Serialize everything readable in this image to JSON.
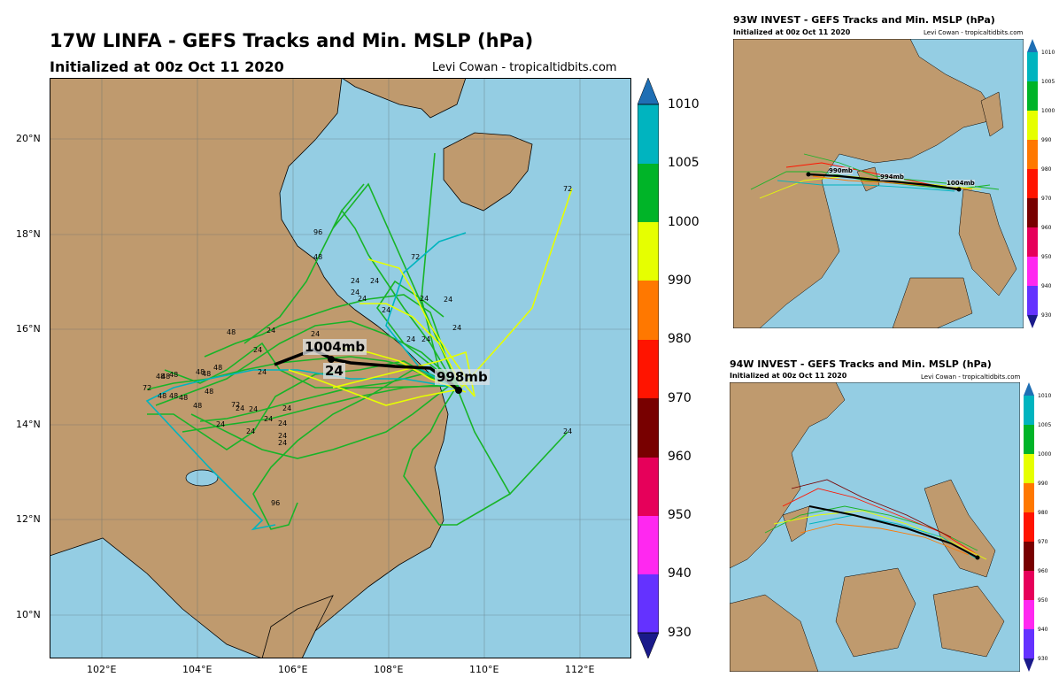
{
  "main": {
    "title": "17W LINFA - GEFS Tracks and Min. MSLP (hPa)",
    "subtitle": "Initialized at 00z Oct 11 2020",
    "credit": "Levi Cowan - tropicaltidbits.com",
    "lat_labels": [
      "20°N",
      "18°N",
      "16°N",
      "14°N",
      "12°N",
      "10°N"
    ],
    "lon_labels": [
      "102°E",
      "104°E",
      "106°E",
      "108°E",
      "110°E",
      "112°E"
    ],
    "pressure_labels": [
      {
        "text": "1004mb"
      },
      {
        "text": "998mb"
      }
    ],
    "hour_label": "24",
    "colorbar_labels": [
      "1010",
      "1005",
      "1000",
      "990",
      "980",
      "970",
      "960",
      "950",
      "940",
      "930"
    ],
    "colorbar_colors": [
      "#00b4bf",
      "#00b428",
      "#e6ff00",
      "#ff7800",
      "#ff1400",
      "#780000",
      "#e6005a",
      "#ff28f0",
      "#ff50ff",
      "#6432ff"
    ]
  },
  "panel_93w": {
    "title": "93W INVEST - GEFS Tracks and Min. MSLP (hPa)",
    "subtitle": "Initialized at 00z Oct 11 2020",
    "credit": "Levi Cowan - tropicaltidbits.com",
    "pressure_labels": [
      "990mb",
      "994mb",
      "1004mb"
    ],
    "colorbar_labels": [
      "1010",
      "1005",
      "1000",
      "990",
      "980",
      "970",
      "960",
      "950",
      "940",
      "930"
    ]
  },
  "panel_94w": {
    "title": "94W INVEST - GEFS Tracks and Min. MSLP (hPa)",
    "subtitle": "Initialized at 00z Oct 11 2020",
    "credit": "Levi Cowan - tropicaltidbits.com",
    "colorbar_labels": [
      "1010",
      "1005",
      "1000",
      "990",
      "980",
      "970",
      "960",
      "950",
      "940",
      "930"
    ]
  },
  "colors": {
    "ocean": "#94cde3",
    "land": "#bf9a6e",
    "track_green": "#18b428",
    "track_yellow": "#e6ff00",
    "track_teal": "#00b4bf",
    "mean_track": "#000000"
  }
}
